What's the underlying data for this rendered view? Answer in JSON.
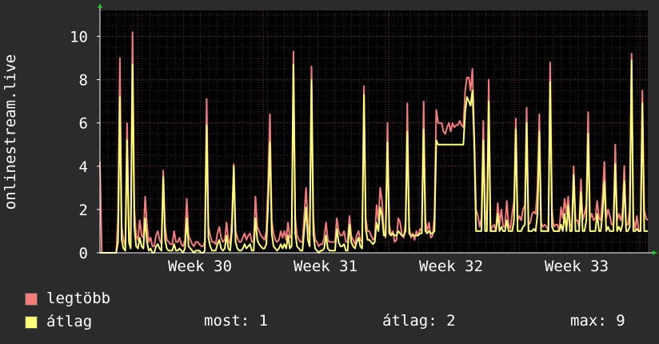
{
  "chart_data": {
    "type": "line",
    "ylabel": "onlinestream.live",
    "ylim": [
      0,
      11.2
    ],
    "yticks": [
      0,
      2,
      4,
      6,
      8,
      10
    ],
    "grid": true,
    "legend_placement": "bottom",
    "x_week_labels": [
      "Week 30",
      "Week 31",
      "Week 32",
      "Week 33"
    ],
    "peaks_note_unused": "",
    "series": [
      {
        "name": "legtöbb",
        "color": "#f57c7c",
        "values": [
          4.2,
          0,
          0,
          0,
          0,
          0,
          0,
          0,
          0,
          0,
          1.6,
          9.0,
          1.2,
          0.6,
          0.3,
          6.0,
          1.0,
          0.5,
          10.2,
          2.0,
          0.8,
          0.6,
          1.5,
          0.8,
          0.7,
          2.6,
          1.3,
          0.5,
          0.7,
          0.3,
          0.3,
          0.8,
          1.0,
          0.6,
          0.4,
          3.8,
          1.2,
          0.6,
          0.5,
          0.4,
          0.4,
          1.0,
          0.5,
          0.5,
          0.7,
          0.4,
          0.3,
          0.6,
          2.5,
          0.8,
          0.6,
          0.4,
          0.3,
          0.5,
          0.5,
          0.4,
          0.3,
          0.3,
          0.5,
          7.1,
          1.2,
          0.8,
          0.5,
          0.5,
          0.4,
          0.9,
          1.2,
          0.7,
          0.5,
          0.6,
          1.4,
          0.6,
          0.4,
          1.6,
          4.1,
          1.0,
          0.7,
          0.5,
          0.5,
          0.7,
          0.9,
          0.6,
          0.8,
          0.9,
          0.5,
          0.5,
          2.6,
          1.2,
          1.0,
          0.8,
          0.7,
          0.6,
          1.0,
          3.2,
          6.4,
          1.5,
          0.9,
          0.6,
          0.5,
          0.6,
          1.0,
          0.7,
          1.0,
          0.6,
          1.4,
          0.7,
          0.8,
          9.3,
          1.6,
          0.8,
          0.6,
          0.5,
          0.5,
          1.8,
          3.0,
          1.3,
          0.8,
          8.6,
          1.6,
          0.6,
          0.5,
          0.3,
          0.4,
          0.4,
          0.7,
          1.4,
          0.6,
          0.5,
          0.5,
          0.5,
          0.5,
          1.6,
          1.0,
          0.8,
          0.8,
          1.0,
          0.5,
          0.5,
          1.7,
          0.8,
          0.6,
          0.4,
          0.8,
          1.0,
          0.6,
          0.5,
          7.7,
          1.6,
          1.0,
          1.0,
          0.8,
          0.6,
          0.7,
          2.2,
          1.5,
          3.0,
          2.4,
          1.0,
          0.7,
          6.0,
          1.3,
          0.8,
          1.0,
          0.5,
          0.6,
          1.6,
          1.4,
          0.8,
          0.7,
          1.4,
          6.9,
          1.2,
          0.7,
          0.9,
          0.6,
          1.0,
          0.8,
          1.1,
          1.0,
          7.0,
          1.5,
          1.0,
          1.4,
          0.7,
          0.8,
          1.7,
          6.6,
          6.0,
          6.0,
          6.0,
          5.6,
          5.5,
          5.8,
          6.0,
          5.6,
          6.0,
          5.8,
          5.9,
          5.9,
          6.1,
          5.9,
          5.8,
          7.5,
          8.1,
          8.1,
          7.5,
          8.5,
          5.5,
          2.0,
          1.7,
          1.2,
          1.6,
          6.1,
          2.0,
          1.3,
          8.0,
          1.0,
          1.2,
          1.3,
          1.0,
          2.3,
          1.3,
          2.0,
          1.2,
          1.2,
          2.4,
          1.3,
          1.1,
          1.8,
          2.4,
          6.2,
          1.5,
          1.7,
          1.5,
          2.0,
          2.2,
          6.7,
          1.3,
          1.4,
          1.8,
          1.9,
          1.8,
          3.1,
          6.4,
          1.4,
          1.2,
          1.3,
          1.2,
          1.0,
          8.8,
          2.0,
          1.2,
          1.3,
          1.3,
          1.0,
          2.1,
          1.6,
          2.5,
          1.8,
          2.6,
          1.3,
          1.2,
          4.0,
          1.5,
          1.5,
          1.2,
          3.4,
          1.5,
          1.8,
          2.2,
          6.5,
          1.6,
          1.8,
          1.5,
          1.6,
          2.4,
          1.6,
          1.5,
          2.7,
          4.2,
          1.6,
          2.0,
          1.7,
          1.3,
          1.3,
          5.0,
          1.5,
          1.8,
          1.5,
          1.9,
          4.0,
          1.3,
          1.3,
          2.0,
          9.2,
          1.6,
          1.1,
          1.7,
          1.0,
          1.0,
          7.5,
          2.0,
          1.6,
          1.5
        ],
        "peaks": [
          [
            0,
            4.2
          ],
          [
            11,
            9.0
          ],
          [
            15,
            6.0
          ],
          [
            18,
            10.2
          ],
          [
            25,
            2.6
          ],
          [
            35,
            3.8
          ],
          [
            48,
            2.5
          ],
          [
            59,
            7.1
          ],
          [
            74,
            4.1
          ],
          [
            86,
            2.6
          ],
          [
            94,
            6.4
          ],
          [
            107,
            9.3
          ],
          [
            114,
            3.0
          ],
          [
            117,
            8.6
          ],
          [
            132,
            1.6
          ],
          [
            145,
            7.7
          ],
          [
            154,
            3.0
          ],
          [
            158,
            6.0
          ],
          [
            169,
            6.9
          ],
          [
            178,
            7.0
          ],
          [
            185,
            6.6
          ],
          [
            198,
            8.1
          ],
          [
            202,
            8.5
          ],
          [
            211,
            6.1
          ],
          [
            214,
            8.0
          ],
          [
            230,
            6.2
          ],
          [
            236,
            6.7
          ],
          [
            243,
            6.4
          ],
          [
            249,
            8.8
          ],
          [
            262,
            4.0
          ],
          [
            270,
            6.5
          ],
          [
            279,
            4.2
          ],
          [
            285,
            5.0
          ],
          [
            290,
            4.0
          ],
          [
            294,
            9.2
          ],
          [
            300,
            7.5
          ]
        ]
      },
      {
        "name": "átlag",
        "color": "#ffff7a",
        "values": [
          0,
          0,
          0,
          0,
          0,
          0,
          0,
          0,
          0,
          0,
          0.5,
          7.2,
          0.6,
          0.2,
          0.1,
          5.2,
          0.5,
          0.2,
          8.7,
          1.2,
          0.3,
          0.2,
          0.7,
          0.3,
          0.2,
          1.6,
          0.5,
          0.1,
          0.2,
          0,
          0,
          0.3,
          0.4,
          0.2,
          0.1,
          3.5,
          0.6,
          0.2,
          0.1,
          0.1,
          0.1,
          0.4,
          0.1,
          0.1,
          0.2,
          0.1,
          0,
          0.2,
          1.6,
          0.3,
          0.2,
          0.1,
          0,
          0.1,
          0.1,
          0.1,
          0,
          0,
          0.1,
          5.9,
          0.7,
          0.3,
          0.1,
          0.1,
          0.1,
          0.4,
          0.6,
          0.2,
          0.1,
          0.2,
          0.8,
          0.2,
          0.1,
          1.0,
          4.0,
          0.5,
          0.2,
          0.1,
          0.1,
          0.2,
          0.4,
          0.2,
          0.3,
          0.4,
          0.1,
          0.1,
          1.6,
          0.6,
          0.4,
          0.3,
          0.2,
          0.2,
          0.4,
          2.2,
          5.1,
          0.9,
          0.3,
          0.2,
          0.1,
          0.2,
          0.4,
          0.2,
          0.4,
          0.2,
          0.8,
          0.2,
          0.3,
          8.7,
          0.9,
          0.3,
          0.2,
          0.1,
          0.1,
          1.1,
          2.1,
          0.6,
          0.3,
          8.0,
          0.9,
          0.2,
          0.1,
          0,
          0.1,
          0.1,
          0.2,
          0.8,
          0.2,
          0.1,
          0.1,
          0.1,
          0.1,
          1.1,
          0.5,
          0.3,
          0.3,
          0.4,
          0.1,
          0.1,
          1.3,
          0.5,
          0.3,
          0.2,
          0.5,
          0.7,
          0.3,
          0.2,
          7.3,
          1.1,
          0.6,
          0.6,
          0.5,
          0.4,
          0.5,
          1.4,
          1.0,
          2.1,
          1.7,
          0.8,
          0.8,
          5.1,
          0.9,
          0.8,
          0.9,
          0.8,
          0.8,
          1.0,
          0.9,
          0.8,
          0.8,
          1.0,
          5.6,
          0.9,
          0.8,
          0.8,
          0.8,
          0.8,
          0.8,
          0.9,
          0.9,
          5.7,
          1.0,
          0.9,
          1.0,
          0.9,
          0.9,
          1.0,
          5.2,
          5.0,
          5.0,
          5.0,
          5.0,
          5.0,
          5.0,
          5.0,
          5.0,
          5.0,
          5.0,
          5.0,
          5.0,
          5.0,
          5.0,
          5.0,
          6.5,
          7.2,
          7.0,
          6.8,
          7.5,
          5.0,
          1.0,
          1.0,
          1.0,
          1.0,
          5.2,
          1.0,
          1.0,
          7.0,
          1.0,
          1.0,
          1.0,
          1.0,
          1.8,
          1.0,
          1.2,
          1.0,
          1.0,
          1.5,
          1.0,
          1.0,
          1.0,
          1.5,
          5.7,
          1.0,
          1.0,
          1.0,
          1.2,
          1.3,
          6.0,
          1.0,
          1.0,
          1.0,
          1.1,
          1.0,
          1.8,
          5.6,
          1.0,
          1.0,
          1.0,
          1.0,
          1.0,
          7.9,
          1.2,
          1.0,
          1.0,
          1.0,
          1.0,
          1.3,
          1.0,
          1.8,
          1.0,
          2.2,
          1.0,
          1.0,
          3.6,
          1.0,
          1.0,
          1.0,
          2.8,
          1.0,
          1.0,
          1.5,
          5.5,
          1.0,
          1.0,
          1.0,
          1.0,
          1.8,
          1.0,
          1.0,
          1.9,
          3.3,
          1.0,
          1.2,
          1.0,
          1.0,
          1.0,
          4.1,
          1.0,
          1.2,
          1.0,
          1.3,
          3.3,
          1.0,
          1.0,
          1.2,
          8.9,
          1.0,
          1.0,
          1.1,
          1.0,
          1.0,
          6.9,
          1.0,
          1.0,
          1.0
        ],
        "peaks": [
          [
            11,
            7.2
          ],
          [
            15,
            5.2
          ],
          [
            18,
            8.7
          ],
          [
            35,
            3.5
          ],
          [
            59,
            5.9
          ],
          [
            74,
            4.0
          ],
          [
            94,
            5.1
          ],
          [
            107,
            8.7
          ],
          [
            117,
            8.0
          ],
          [
            145,
            7.3
          ],
          [
            158,
            5.1
          ],
          [
            169,
            5.6
          ],
          [
            178,
            5.7
          ],
          [
            185,
            5.2
          ],
          [
            202,
            7.5
          ],
          [
            211,
            5.2
          ],
          [
            214,
            7.0
          ],
          [
            230,
            5.7
          ],
          [
            236,
            6.0
          ],
          [
            243,
            5.6
          ],
          [
            249,
            7.9
          ],
          [
            262,
            3.6
          ],
          [
            270,
            5.5
          ],
          [
            279,
            3.3
          ],
          [
            285,
            4.1
          ],
          [
            290,
            3.3
          ],
          [
            294,
            8.9
          ],
          [
            300,
            6.9
          ]
        ]
      }
    ]
  },
  "legend": [
    {
      "label": "legtöbb",
      "color": "#f57c7c"
    },
    {
      "label": "átlag",
      "color": "#ffff7a"
    }
  ],
  "stats": {
    "most": "most: 1",
    "atlag": "átlag: 2",
    "max": "max: 9"
  }
}
